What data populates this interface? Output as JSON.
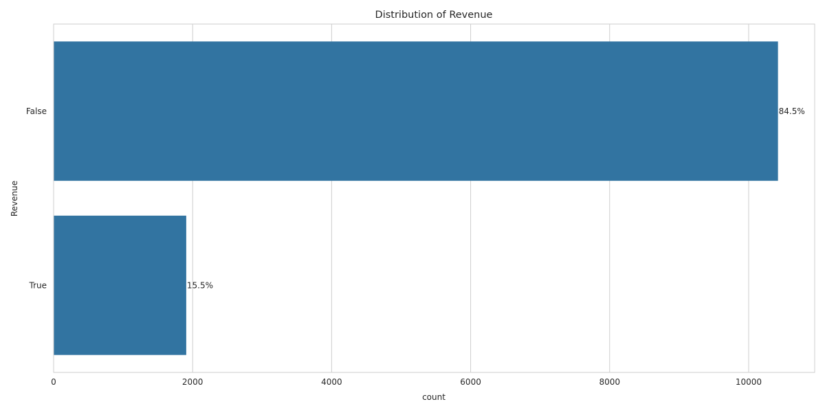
{
  "chart_data": {
    "type": "bar",
    "orientation": "horizontal",
    "title": "Distribution of Revenue",
    "xlabel": "count",
    "ylabel": "Revenue",
    "categories": [
      "False",
      "True"
    ],
    "values": [
      10422,
      1908
    ],
    "bar_labels": [
      "84.5%",
      "15.5%"
    ],
    "xlim": [
      0,
      10950
    ],
    "xticks": [
      0,
      2000,
      4000,
      6000,
      8000,
      10000
    ],
    "grid": true,
    "legend": "none",
    "bar_color": "#3274a1",
    "grid_color": "#cccccc",
    "spine_color": "#cccccc"
  }
}
